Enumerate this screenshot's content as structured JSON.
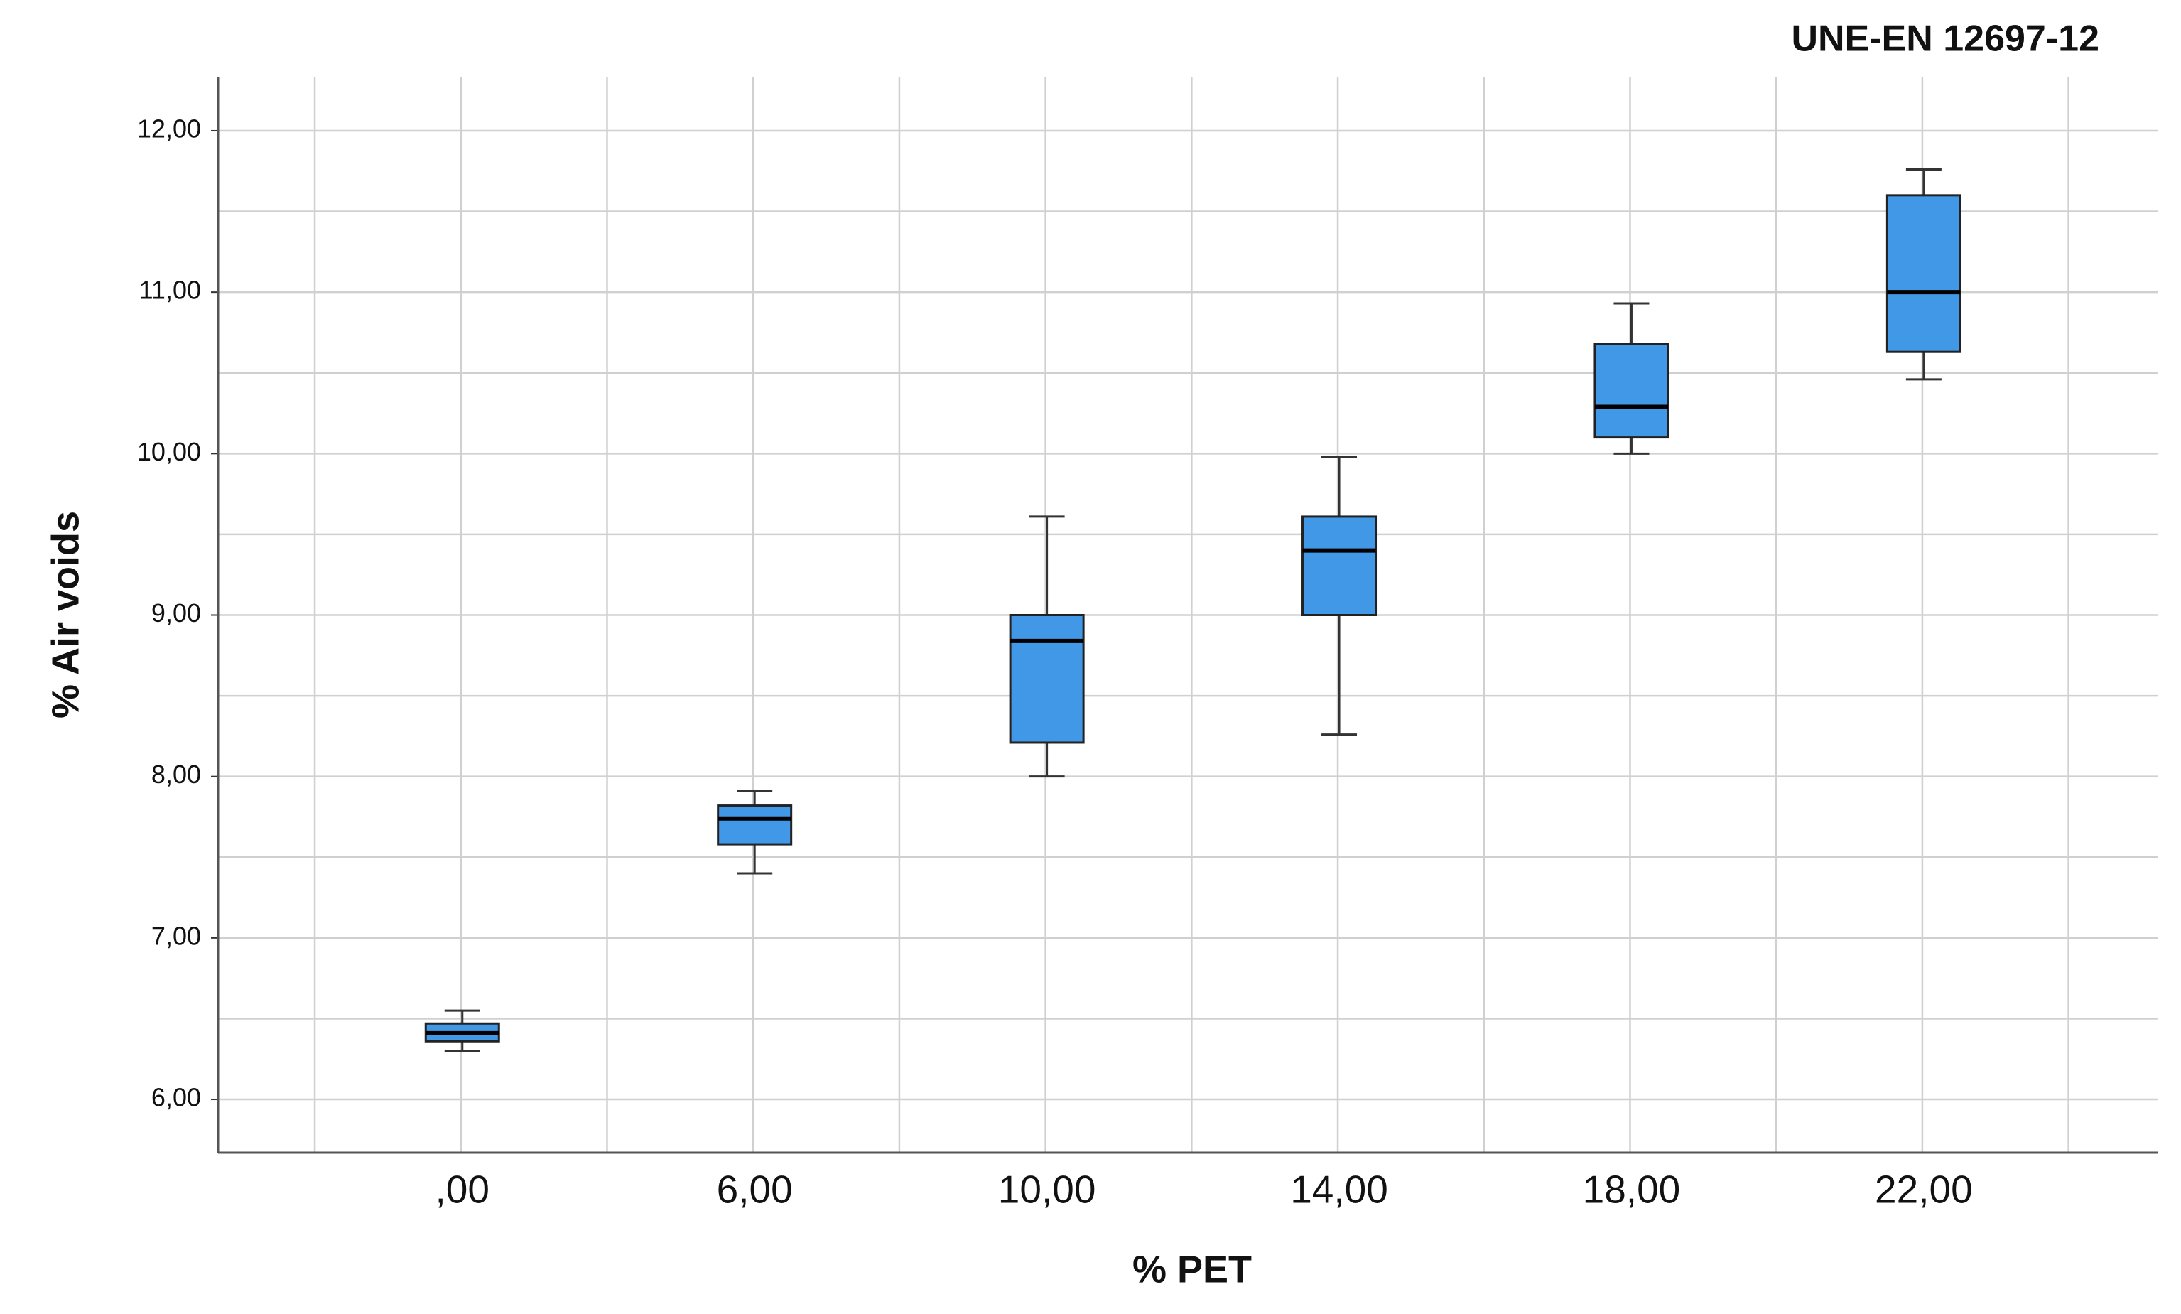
{
  "chart_data": {
    "type": "box",
    "title": "UNE-EN 12697-12",
    "x_label": "% PET",
    "y_label": "% Air voids",
    "categories": [
      ",00",
      "6,00",
      "10,00",
      "14,00",
      "18,00",
      "22,00"
    ],
    "color": "#4198e6",
    "boxes": [
      {
        "whislo": 6.3,
        "q1": 6.36,
        "med": 6.41,
        "q3": 6.47,
        "whishi": 6.55
      },
      {
        "whislo": 7.4,
        "q1": 7.58,
        "med": 7.74,
        "q3": 7.82,
        "whishi": 7.91
      },
      {
        "whislo": 8.0,
        "q1": 8.21,
        "med": 8.84,
        "q3": 9.0,
        "whishi": 9.61
      },
      {
        "whislo": 8.26,
        "q1": 9.0,
        "med": 9.4,
        "q3": 9.61,
        "whishi": 9.98
      },
      {
        "whislo": 10.0,
        "q1": 10.1,
        "med": 10.29,
        "q3": 10.68,
        "whishi": 10.93
      },
      {
        "whislo": 10.46,
        "q1": 10.63,
        "med": 11.0,
        "q3": 11.6,
        "whishi": 11.76
      }
    ],
    "ylim": [
      5.67,
      12.33
    ],
    "yticks": [
      {
        "value": 6,
        "label": "6,00"
      },
      {
        "value": 7,
        "label": "7,00"
      },
      {
        "value": 8,
        "label": "8,00"
      },
      {
        "value": 9,
        "label": "9,00"
      },
      {
        "value": 10,
        "label": "10,00"
      },
      {
        "value": 11,
        "label": "11,00"
      },
      {
        "value": 12,
        "label": "12,00"
      }
    ],
    "minor_yticks": [
      6.5,
      7.5,
      8.5,
      9.5,
      10.5,
      11.5
    ],
    "grid": true
  }
}
